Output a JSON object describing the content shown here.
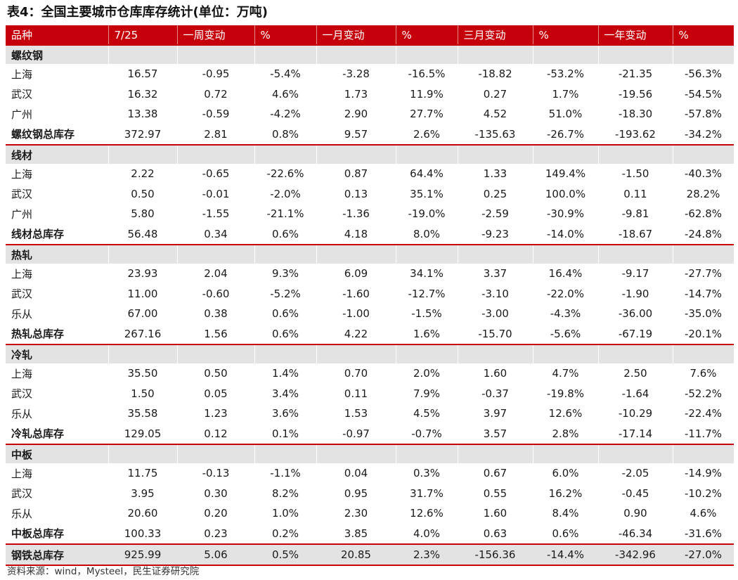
{
  "title": "表4：全国主要城市仓库库存统计(单位：万吨)",
  "header": [
    "品种",
    "7/25",
    "一周变动",
    "%",
    "一月变动",
    "%",
    "三月变动",
    "%",
    "一年变动",
    "%"
  ],
  "sections": [
    {
      "name": "螺纹钢",
      "rows": [
        [
          "上海",
          "16.57",
          "-0.95",
          "-5.4%",
          "-3.28",
          "-16.5%",
          "-18.82",
          "-53.2%",
          "-21.35",
          "-56.3%"
        ],
        [
          "武汉",
          "16.32",
          "0.72",
          "4.6%",
          "1.73",
          "11.9%",
          "0.27",
          "1.7%",
          "-19.56",
          "-54.5%"
        ],
        [
          "广州",
          "13.38",
          "-0.59",
          "-4.2%",
          "2.90",
          "27.7%",
          "4.52",
          "51.0%",
          "-18.30",
          "-57.8%"
        ]
      ],
      "total": [
        "螺纹钢总库存",
        "372.97",
        "2.81",
        "0.8%",
        "9.57",
        "2.6%",
        "-135.63",
        "-26.7%",
        "-193.62",
        "-34.2%"
      ]
    },
    {
      "name": "线材",
      "rows": [
        [
          "上海",
          "2.22",
          "-0.65",
          "-22.6%",
          "0.87",
          "64.4%",
          "1.33",
          "149.4%",
          "-1.50",
          "-40.3%"
        ],
        [
          "武汉",
          "0.50",
          "-0.01",
          "-2.0%",
          "0.13",
          "35.1%",
          "0.25",
          "100.0%",
          "0.11",
          "28.2%"
        ],
        [
          "广州",
          "5.80",
          "-1.55",
          "-21.1%",
          "-1.36",
          "-19.0%",
          "-2.59",
          "-30.9%",
          "-9.81",
          "-62.8%"
        ]
      ],
      "total": [
        "线材总库存",
        "56.48",
        "0.34",
        "0.6%",
        "4.18",
        "8.0%",
        "-9.23",
        "-14.0%",
        "-18.67",
        "-24.8%"
      ]
    },
    {
      "name": "热轧",
      "rows": [
        [
          "上海",
          "23.93",
          "2.04",
          "9.3%",
          "6.09",
          "34.1%",
          "3.37",
          "16.4%",
          "-9.17",
          "-27.7%"
        ],
        [
          "武汉",
          "11.00",
          "-0.60",
          "-5.2%",
          "-1.60",
          "-12.7%",
          "-3.10",
          "-22.0%",
          "-1.90",
          "-14.7%"
        ],
        [
          "乐从",
          "67.00",
          "0.38",
          "0.6%",
          "-1.00",
          "-1.5%",
          "-3.00",
          "-4.3%",
          "-36.00",
          "-35.0%"
        ]
      ],
      "total": [
        "热轧总库存",
        "267.16",
        "1.56",
        "0.6%",
        "4.22",
        "1.6%",
        "-15.70",
        "-5.6%",
        "-67.19",
        "-20.1%"
      ]
    },
    {
      "name": "冷轧",
      "rows": [
        [
          "上海",
          "35.50",
          "0.50",
          "1.4%",
          "0.70",
          "2.0%",
          "1.60",
          "4.7%",
          "2.50",
          "7.6%"
        ],
        [
          "武汉",
          "1.50",
          "0.05",
          "3.4%",
          "0.11",
          "7.9%",
          "-0.37",
          "-19.8%",
          "-1.64",
          "-52.2%"
        ],
        [
          "乐从",
          "35.58",
          "1.23",
          "3.6%",
          "1.53",
          "4.5%",
          "3.97",
          "12.6%",
          "-10.29",
          "-22.4%"
        ]
      ],
      "total": [
        "冷轧总库存",
        "129.05",
        "0.12",
        "0.1%",
        "-0.97",
        "-0.7%",
        "3.57",
        "2.8%",
        "-17.14",
        "-11.7%"
      ]
    },
    {
      "name": "中板",
      "rows": [
        [
          "上海",
          "11.75",
          "-0.13",
          "-1.1%",
          "0.04",
          "0.3%",
          "0.67",
          "6.0%",
          "-2.05",
          "-14.9%"
        ],
        [
          "武汉",
          "3.95",
          "0.30",
          "8.2%",
          "0.95",
          "31.7%",
          "0.55",
          "16.2%",
          "-0.45",
          "-10.2%"
        ],
        [
          "乐从",
          "20.60",
          "0.20",
          "1.0%",
          "2.30",
          "12.6%",
          "1.60",
          "8.4%",
          "0.90",
          "4.6%"
        ]
      ],
      "total": [
        "中板总库存",
        "100.33",
        "0.23",
        "0.2%",
        "3.85",
        "4.0%",
        "0.63",
        "0.6%",
        "-46.34",
        "-31.6%"
      ]
    }
  ],
  "grand_total": [
    "钢铁总库存",
    "925.99",
    "5.06",
    "0.5%",
    "20.85",
    "2.3%",
    "-156.36",
    "-14.4%",
    "-342.96",
    "-27.0%"
  ],
  "source": "资料来源：wind，Mysteel，民生证券研究院",
  "colors": {
    "header_bg": "#c5000b",
    "section_bg": "#e3e3e3",
    "rule": "#c5000b"
  }
}
